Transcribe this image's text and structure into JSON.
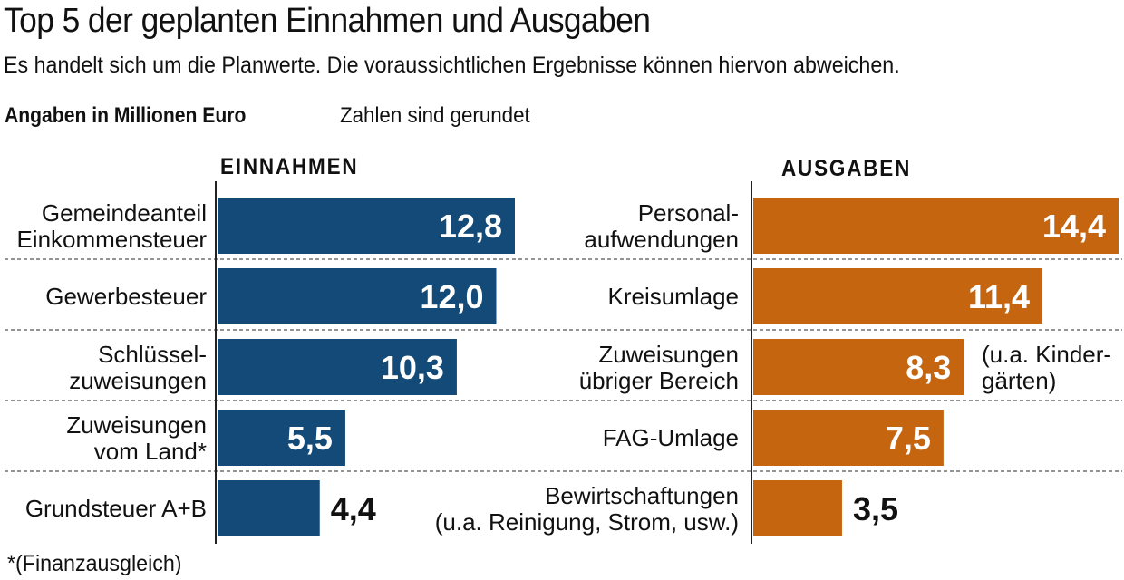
{
  "title": "Top 5 der geplanten Einnahmen und Ausgaben",
  "subtitle": "Es handelt sich um die Planwerte. Die voraussichtlichen Ergebnisse können hiervon abweichen.",
  "unit_label": "Angaben in Millionen Euro",
  "rounding_note": "Zahlen sind gerundet",
  "footnote": "*(Finanzausgleich)",
  "colors": {
    "einnahmen": "#134a78",
    "ausgaben": "#c5650f",
    "text": "#111111"
  },
  "chart_data": [
    {
      "type": "bar",
      "orientation": "horizontal",
      "title": "EINNAHMEN",
      "unit": "Millionen Euro",
      "categories": [
        [
          "Gemeindeanteil",
          "Einkommensteuer"
        ],
        [
          "Gewerbesteuer"
        ],
        [
          "Schlüssel-",
          "zuweisungen"
        ],
        [
          "Zuweisungen",
          "vom Land*"
        ],
        [
          "Grundsteuer A+B"
        ]
      ],
      "values": [
        12.8,
        12.0,
        10.3,
        5.5,
        4.4
      ],
      "value_labels": [
        "12,8",
        "12,0",
        "10,3",
        "5,5",
        "4,4"
      ],
      "color": "#134a78",
      "xlim": [
        0,
        14.4
      ]
    },
    {
      "type": "bar",
      "orientation": "horizontal",
      "title": "AUSGABEN",
      "unit": "Millionen Euro",
      "categories": [
        [
          "Personal-",
          "aufwendungen"
        ],
        [
          "Kreisumlage"
        ],
        [
          "Zuweisungen",
          "übriger Bereich"
        ],
        [
          "FAG-Umlage"
        ],
        [
          "Bewirtschaftungen",
          "(u.a. Reinigung, Strom, usw.)"
        ]
      ],
      "values": [
        14.4,
        11.4,
        8.3,
        7.5,
        3.5
      ],
      "value_labels": [
        "14,4",
        "11,4",
        "8,3",
        "7,5",
        "3,5"
      ],
      "annotations": [
        {
          "category_index": 2,
          "lines": [
            "(u.a. Kinder-",
            "gärten)"
          ]
        }
      ],
      "color": "#c5650f",
      "xlim": [
        0,
        14.4
      ]
    }
  ]
}
